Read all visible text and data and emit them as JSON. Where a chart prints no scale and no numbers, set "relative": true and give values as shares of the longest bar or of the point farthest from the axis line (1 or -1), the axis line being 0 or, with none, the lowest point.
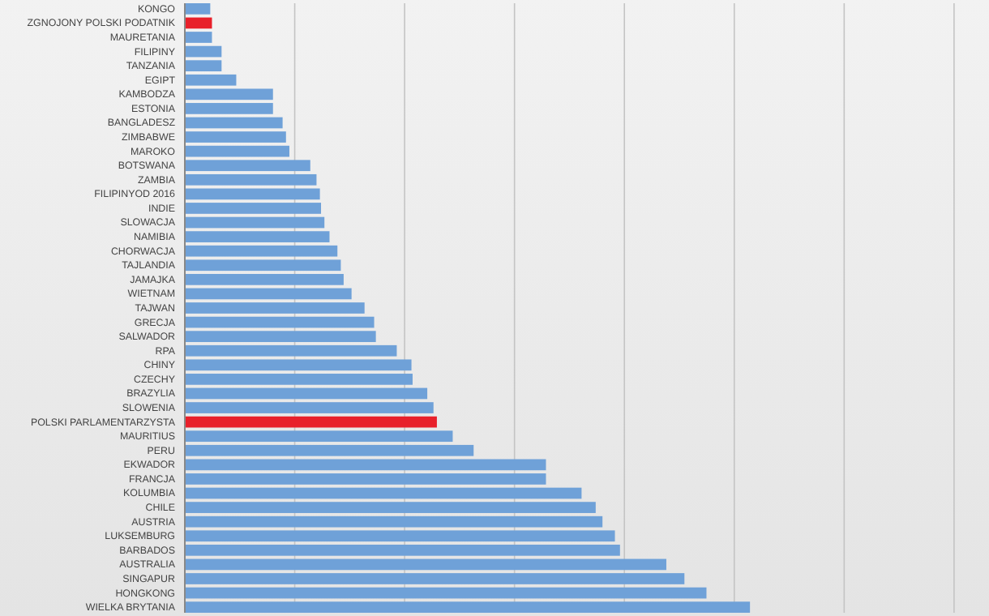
{
  "chart_data": {
    "type": "bar",
    "orientation": "horizontal",
    "relative": true,
    "grid": "x",
    "categories": [
      "KONGO",
      "ZGNOJONY POLSKI PODATNIK",
      "MAURETANIA",
      "FILIPINY",
      "TANZANIA",
      "EGIPT",
      "KAMBODZA",
      "ESTONIA",
      "BANGLADESZ",
      "ZIMBABWE",
      "MAROKO",
      "BOTSWANA",
      "ZAMBIA",
      "FILIPINYOD 2016",
      "INDIE",
      "SLOWACJA",
      "NAMIBIA",
      "CHORWACJA",
      "TAJLANDIA",
      "JAMAJKA",
      "WIETNAM",
      "TAJWAN",
      "GRECJA",
      "SALWADOR",
      "RPA",
      "CHINY",
      "CZECHY",
      "BRAZYLIA",
      "SLOWENIA",
      "POLSKI PARLAMENTARZYSTA",
      "MAURITIUS",
      "PERU",
      "EKWADOR",
      "FRANCJA",
      "KOLUMBIA",
      "CHILE",
      "AUSTRIA",
      "LUKSEMBURG",
      "BARBADOS",
      "AUSTRALIA",
      "SINGAPUR",
      "HONGKONG",
      "WIELKA BRYTANIA"
    ],
    "values": [
      0.045,
      0.048,
      0.048,
      0.065,
      0.065,
      0.091,
      0.156,
      0.156,
      0.173,
      0.179,
      0.185,
      0.222,
      0.233,
      0.239,
      0.241,
      0.247,
      0.256,
      0.27,
      0.276,
      0.281,
      0.295,
      0.318,
      0.335,
      0.338,
      0.375,
      0.401,
      0.403,
      0.429,
      0.44,
      0.446,
      0.474,
      0.511,
      0.639,
      0.639,
      0.702,
      0.727,
      0.739,
      0.761,
      0.77,
      0.852,
      0.884,
      0.923,
      1
    ],
    "colors": [
      "#6fa1d8",
      "#e8202a",
      "#6fa1d8",
      "#6fa1d8",
      "#6fa1d8",
      "#6fa1d8",
      "#6fa1d8",
      "#6fa1d8",
      "#6fa1d8",
      "#6fa1d8",
      "#6fa1d8",
      "#6fa1d8",
      "#6fa1d8",
      "#6fa1d8",
      "#6fa1d8",
      "#6fa1d8",
      "#6fa1d8",
      "#6fa1d8",
      "#6fa1d8",
      "#6fa1d8",
      "#6fa1d8",
      "#6fa1d8",
      "#6fa1d8",
      "#6fa1d8",
      "#6fa1d8",
      "#6fa1d8",
      "#6fa1d8",
      "#6fa1d8",
      "#6fa1d8",
      "#e8202a",
      "#6fa1d8",
      "#6fa1d8",
      "#6fa1d8",
      "#6fa1d8",
      "#6fa1d8",
      "#6fa1d8",
      "#6fa1d8",
      "#6fa1d8",
      "#6fa1d8",
      "#6fa1d8",
      "#6fa1d8",
      "#6fa1d8",
      "#6fa1d8"
    ]
  }
}
